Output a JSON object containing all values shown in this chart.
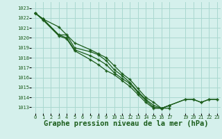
{
  "background_color": "#d5f0ec",
  "grid_color": "#aad8d0",
  "line_color": "#1a5c1a",
  "marker_color": "#1a5c1a",
  "title": "Graphe pression niveau de la mer (hPa)",
  "title_fontsize": 7.5,
  "title_color": "#1a5c1a",
  "tick_color": "#1a5c1a",
  "xlim": [
    -0.5,
    23.5
  ],
  "ylim": [
    1012.4,
    1023.6
  ],
  "yticks": [
    1013,
    1014,
    1015,
    1016,
    1017,
    1018,
    1019,
    1020,
    1021,
    1022,
    1023
  ],
  "xticks": [
    0,
    1,
    2,
    3,
    4,
    5,
    6,
    7,
    8,
    9,
    10,
    11,
    12,
    13,
    14,
    15,
    16,
    17,
    19,
    20,
    21,
    22,
    23
  ],
  "series": [
    [
      1022.5,
      1021.9,
      null,
      1021.1,
      1020.3,
      1019.5,
      null,
      1018.8,
      1018.4,
      1018.0,
      1017.2,
      1016.4,
      1015.8,
      1014.9,
      1014.0,
      1013.5,
      1012.9,
      1012.9,
      null,
      null,
      null,
      null,
      null,
      null
    ],
    [
      1022.5,
      1021.9,
      null,
      1020.3,
      1020.3,
      1019.0,
      null,
      1018.6,
      1018.3,
      1017.7,
      1016.8,
      1016.2,
      1015.5,
      1014.6,
      1013.8,
      1013.2,
      1012.9,
      1013.2,
      null,
      null,
      null,
      null,
      null,
      null
    ],
    [
      1022.5,
      1021.9,
      null,
      1020.3,
      1020.0,
      1018.8,
      null,
      1018.2,
      1017.8,
      1017.3,
      1016.5,
      1015.9,
      1015.4,
      1014.5,
      1013.7,
      1013.0,
      1012.9,
      1013.2,
      null,
      1013.8,
      1013.8,
      1013.5,
      1013.8,
      1013.8
    ],
    [
      1022.5,
      1021.8,
      null,
      1020.2,
      1019.9,
      1018.7,
      null,
      1017.8,
      1017.3,
      1016.7,
      1016.3,
      1015.7,
      1015.1,
      1014.3,
      1013.5,
      1012.9,
      1012.9,
      1013.2,
      null,
      1013.8,
      1013.8,
      1013.5,
      1013.8,
      1013.8
    ]
  ],
  "font_family": "monospace"
}
